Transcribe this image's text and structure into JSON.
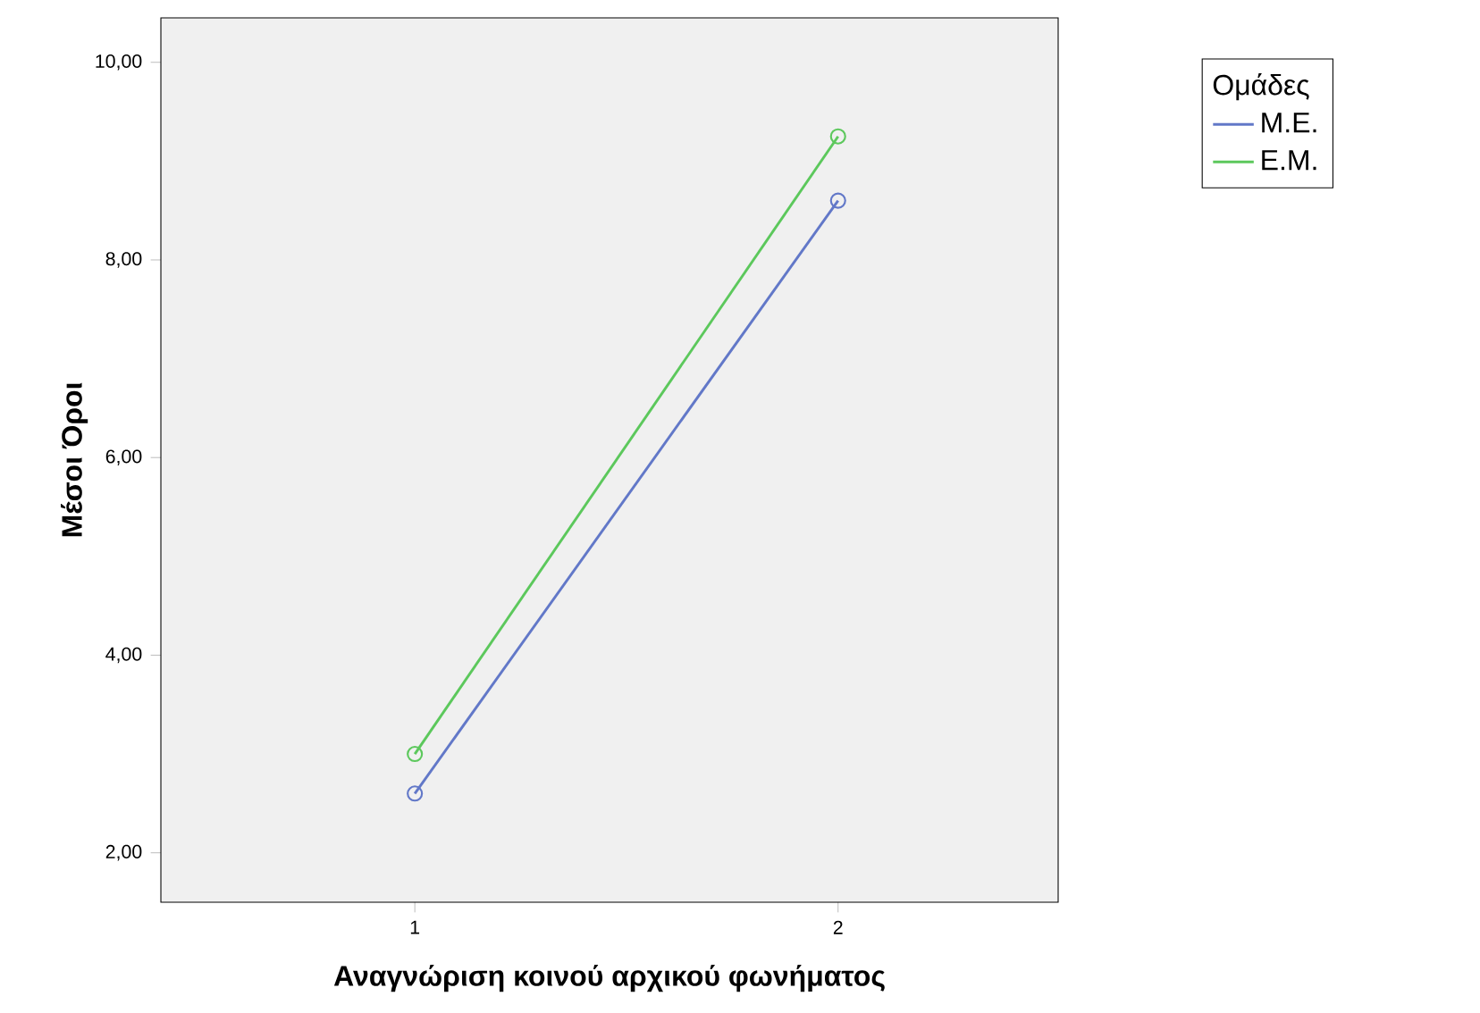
{
  "chart_data": {
    "type": "line",
    "xlabel": "Αναγνώριση κοινού αρχικού φωνήματος",
    "ylabel": "Μέσοι Όροι",
    "legend_title": "Ομάδες",
    "legend": "top right",
    "marker": "circle",
    "line_style": "solid",
    "grid": false,
    "categories": [
      "1",
      "2"
    ],
    "ylim": [
      1.5,
      10.45
    ],
    "yticks": [
      {
        "value": 2,
        "label": "2,00"
      },
      {
        "value": 4,
        "label": "4,00"
      },
      {
        "value": 6,
        "label": "6,00"
      },
      {
        "value": 8,
        "label": "8,00"
      },
      {
        "value": 10,
        "label": "10,00"
      }
    ],
    "series": [
      {
        "name": "Μ.Ε.",
        "color": "#6278c8",
        "values": [
          2.6,
          8.6
        ]
      },
      {
        "name": "Ε.Μ.",
        "color": "#5cc85c",
        "values": [
          3.0,
          9.25
        ]
      }
    ]
  }
}
